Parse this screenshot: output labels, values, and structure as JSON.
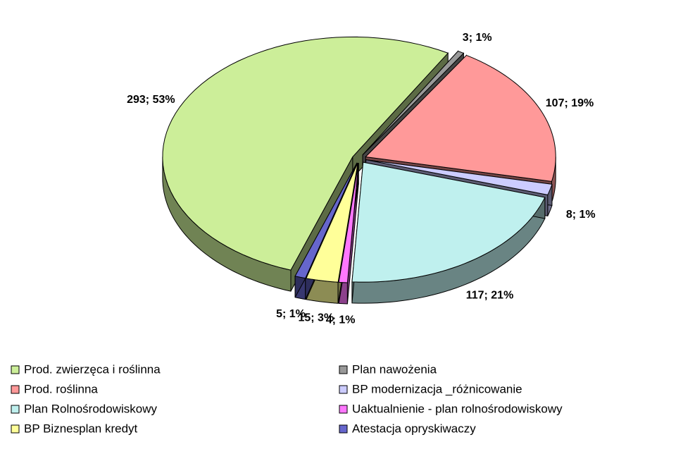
{
  "chart_data": {
    "type": "pie",
    "categories": [
      "Prod. zwierzęca i roślinna",
      "Plan nawożenia",
      "Prod. roślinna",
      "BP modernizacja _różnicowanie",
      "Plan Rolnośrodowiskowy",
      "Uaktualnienie - plan rolnośrodowiskowy",
      "BP Biznesplan kredyt",
      "Atestacja opryskiwaczy"
    ],
    "values": [
      293,
      3,
      107,
      8,
      117,
      4,
      15,
      5
    ],
    "value_labels": [
      "293; 53%",
      "3; 1%",
      "107; 19%",
      "8; 1%",
      "117; 21%",
      "4; 1%",
      "15; 3%",
      "5; 1%"
    ],
    "colors": [
      "#ccee99",
      "#999999",
      "#ff9999",
      "#ccccff",
      "#bff0ee",
      "#ff77ff",
      "#ffff99",
      "#6666cc"
    ],
    "legend": "bottom"
  }
}
